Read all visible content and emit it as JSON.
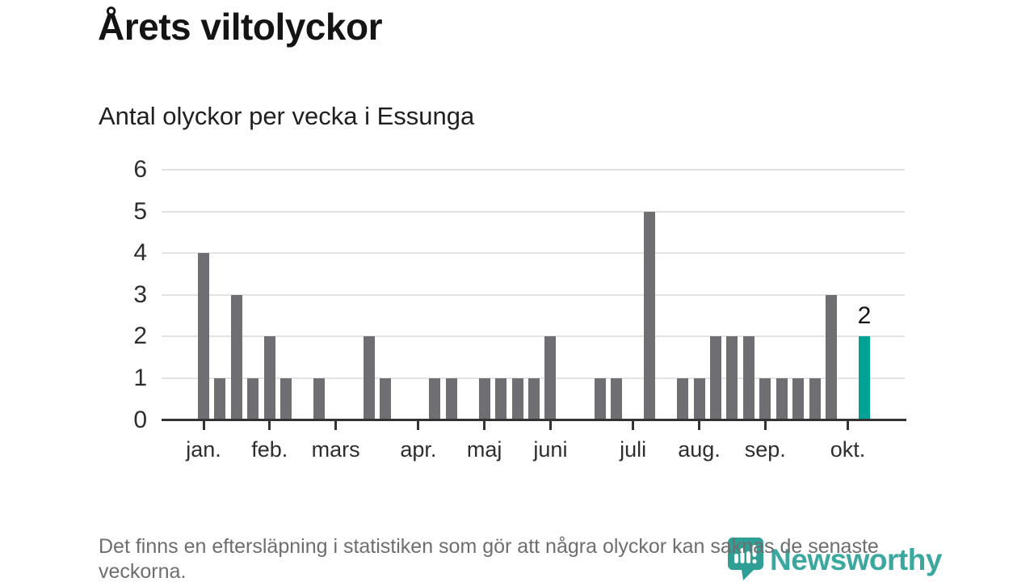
{
  "chart_data": {
    "type": "bar",
    "title": "Årets viltolyckor",
    "subtitle": "Antal olyckor per vecka i Essunga",
    "x_unit": "vecka",
    "ylim": [
      0,
      6
    ],
    "yticks": [
      0,
      1,
      2,
      3,
      4,
      5,
      6
    ],
    "grid": true,
    "legend": "none",
    "values_by_week": [
      4,
      1,
      3,
      1,
      2,
      1,
      0,
      1,
      0,
      0,
      2,
      1,
      0,
      0,
      1,
      1,
      0,
      1,
      1,
      1,
      1,
      2,
      0,
      0,
      1,
      1,
      0,
      5,
      0,
      1,
      1,
      2,
      2,
      2,
      1,
      1,
      1,
      1,
      3,
      0,
      2
    ],
    "month_ticks": [
      {
        "label": "jan.",
        "week_index": 0
      },
      {
        "label": "feb.",
        "week_index": 4
      },
      {
        "label": "mars",
        "week_index": 8
      },
      {
        "label": "apr.",
        "week_index": 13
      },
      {
        "label": "maj",
        "week_index": 17
      },
      {
        "label": "juni",
        "week_index": 21
      },
      {
        "label": "juli",
        "week_index": 26
      },
      {
        "label": "aug.",
        "week_index": 30
      },
      {
        "label": "sep.",
        "week_index": 34
      },
      {
        "label": "okt.",
        "week_index": 39
      }
    ],
    "highlight": {
      "week_index": 40,
      "value": 2,
      "label": "2",
      "color": "#00a296"
    },
    "bar_color": "#6e6e73",
    "axis_color": "#333333",
    "gridline_color": "#e3e3e3"
  },
  "footer": {
    "note": "Det finns en eftersläpning i statistiken som gör att några olyckor kan saknas de senaste veckorna."
  },
  "logo": {
    "wordmark": "Newsworthy",
    "icon": "newsworthy-pin-bar-chart-icon",
    "wordmark_color": "#3aa89e",
    "icon_color": "#2f9f95"
  }
}
